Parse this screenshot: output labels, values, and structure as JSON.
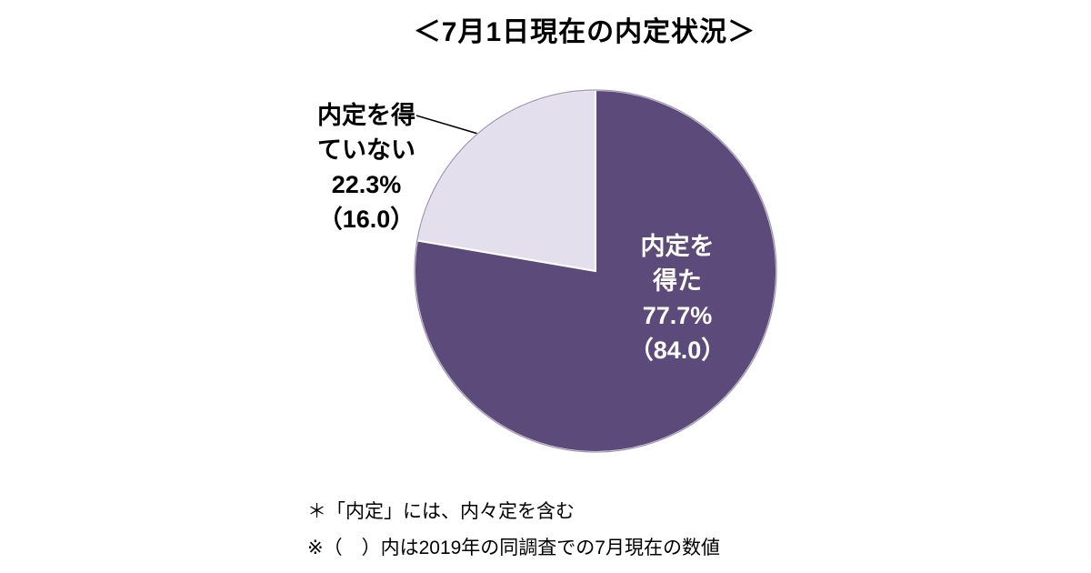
{
  "title": "＜7月1日現在の内定状況＞",
  "chart_data": {
    "type": "pie",
    "title": "＜7月1日現在の内定状況＞",
    "direction": "clockwise",
    "start_angle_deg": 0,
    "legend_position": "none",
    "slices": [
      {
        "id": "offered",
        "label": "内定を得た",
        "percent": 77.7,
        "value_2019": 84.0,
        "color": "#5c4a7a",
        "label_color": "#ffffff"
      },
      {
        "id": "not-offered",
        "label": "内定を得ていない",
        "percent": 22.3,
        "value_2019": 16.0,
        "color": "#e4dfec",
        "label_color": "#000000"
      }
    ]
  },
  "labels": {
    "offered": {
      "line1": "内定を",
      "line2": "得た",
      "percent": "77.7%",
      "paren": "（84.0）"
    },
    "not_offered": {
      "line1": "内定を得",
      "line2": "ていない",
      "percent": "22.3%",
      "paren": "（16.0）"
    }
  },
  "footnotes": [
    "＊「内定」には、内々定を含む",
    "※（　）内は2019年の同調査での7月現在の数値"
  ]
}
